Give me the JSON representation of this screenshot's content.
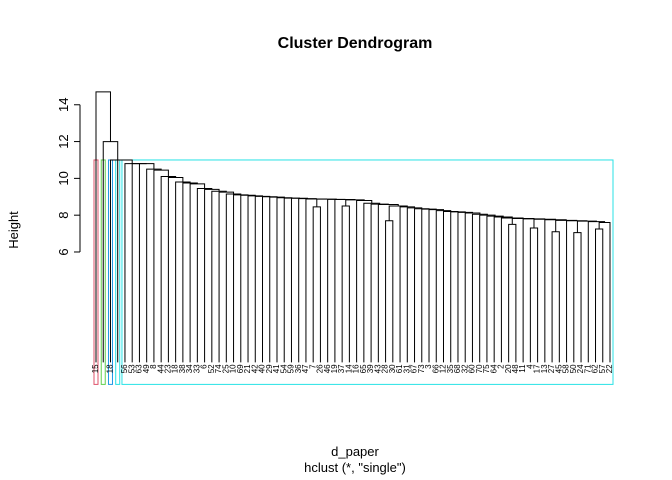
{
  "chart_data": {
    "type": "dendrogram",
    "title": "Cluster Dendrogram",
    "xlabel": "d_paper",
    "sub": "hclust (*, \"single\")",
    "ylabel": "Height",
    "yticks": [
      6,
      8,
      10,
      12,
      14
    ],
    "ylim": [
      -1.5,
      15.4
    ],
    "root_height": 14.7,
    "second_height": 12.0,
    "rect_height": 11.0,
    "leaf_labels": [
      "15",
      "",
      "18",
      "",
      "56",
      "53",
      "63",
      "49",
      "8",
      "44",
      "23",
      "18",
      "38",
      "34",
      "33",
      "6",
      "52",
      "74",
      "25",
      "10",
      "69",
      "21",
      "42",
      "40",
      "29",
      "41",
      "54",
      "59",
      "36",
      "47",
      "7",
      "26",
      "46",
      "19",
      "37",
      "14",
      "16",
      "65",
      "39",
      "43",
      "28",
      "30",
      "61",
      "31",
      "67",
      "73",
      "3",
      "66",
      "12",
      "35",
      "68",
      "32",
      "60",
      "70",
      "75",
      "64",
      "2",
      "20",
      "48",
      "11",
      "4",
      "17",
      "13",
      "27",
      "45",
      "58",
      "50",
      "24",
      "71",
      "62",
      "57",
      "22"
    ],
    "left_leaves": [
      {
        "label": "15",
        "height": 11.0,
        "color": "#DF536B"
      },
      {
        "label": "",
        "height": 11.0,
        "color": "#61D04F"
      },
      {
        "label": "18",
        "height": 11.0,
        "color": "#2297E6"
      },
      {
        "label": "",
        "height": 11.0,
        "color": "#28E2E5"
      }
    ],
    "main_merges": [
      10.8,
      10.5,
      10.45,
      10.1,
      10.05,
      9.8,
      9.75,
      9.7,
      9.45,
      9.4,
      9.3,
      9.25,
      9.15,
      9.1,
      9.08,
      9.05,
      9.02,
      9.0,
      8.98,
      8.95,
      8.93,
      8.92,
      8.9,
      8.88,
      8.87,
      8.86,
      8.85,
      8.83,
      8.8,
      8.65,
      8.6,
      8.58,
      8.5,
      8.45,
      8.4,
      8.35,
      8.33,
      8.3,
      8.25,
      8.2,
      8.18,
      8.15,
      8.12,
      8.05,
      8.0,
      7.95,
      7.9,
      7.85,
      7.82,
      7.8,
      7.78,
      7.75,
      7.72,
      7.7,
      7.68,
      7.65,
      7.6
    ],
    "sub_merges": [
      {
        "after": 30,
        "height": 8.45
      },
      {
        "after": 34,
        "height": 8.5
      },
      {
        "after": 40,
        "height": 7.7
      },
      {
        "after": 57,
        "height": 7.5
      },
      {
        "after": 60,
        "height": 7.3
      },
      {
        "after": 63,
        "height": 7.1
      },
      {
        "after": 66,
        "height": 7.05
      },
      {
        "after": 69,
        "height": 7.25
      }
    ],
    "colors": {
      "line": "#000000",
      "rect": "#28E2E5"
    }
  }
}
